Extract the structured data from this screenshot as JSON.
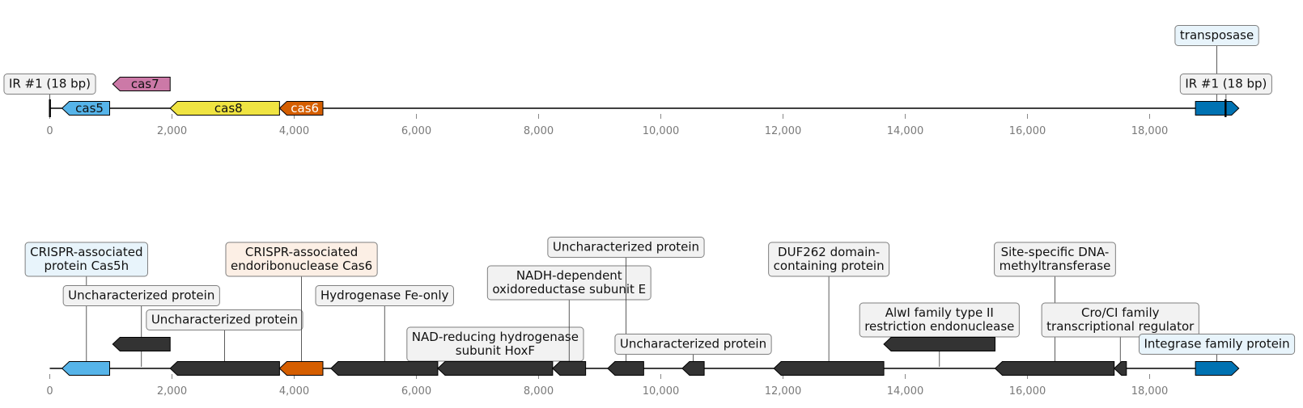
{
  "axis": {
    "ticks": [
      {
        "value": 0,
        "label": "0"
      },
      {
        "value": 2000,
        "label": "2,000"
      },
      {
        "value": 4000,
        "label": "4,000"
      },
      {
        "value": 6000,
        "label": "6,000"
      },
      {
        "value": 8000,
        "label": "8,000"
      },
      {
        "value": 10000,
        "label": "10,000"
      },
      {
        "value": 12000,
        "label": "12,000"
      },
      {
        "value": 14000,
        "label": "14,000"
      },
      {
        "value": 16000,
        "label": "16,000"
      },
      {
        "value": 18000,
        "label": "18,000"
      }
    ]
  },
  "tracks": [
    {
      "id": "top",
      "span": [
        0,
        19350
      ],
      "features": [
        {
          "key": "ir-left",
          "type": "repeat",
          "start": 0,
          "end": 18
        },
        {
          "key": "cas5",
          "type": "gene",
          "start": 200,
          "end": 980,
          "strand": -1,
          "color": "#56b4e9",
          "text_color": "#111111",
          "label": "cas5",
          "lane": 0
        },
        {
          "key": "cas7",
          "type": "gene",
          "start": 1030,
          "end": 1970,
          "strand": -1,
          "color": "#cc79a7",
          "text_color": "#111111",
          "label": "cas7",
          "lane": 1
        },
        {
          "key": "cas8",
          "type": "gene",
          "start": 1970,
          "end": 3760,
          "strand": -1,
          "color": "#f0e442",
          "text_color": "#111111",
          "label": "cas8",
          "lane": 0
        },
        {
          "key": "cas6",
          "type": "gene",
          "start": 3760,
          "end": 4470,
          "strand": -1,
          "color": "#d55e00",
          "text_color": "#ffffff",
          "label": "cas6",
          "lane": 0
        },
        {
          "key": "transposase",
          "type": "gene",
          "start": 18750,
          "end": 19460,
          "strand": 1,
          "color": "#0072b2",
          "lane": 0
        },
        {
          "key": "ir-right",
          "type": "repeat",
          "start": 19240,
          "end": 19258
        }
      ],
      "annotations": [
        {
          "key": "ir-left-label",
          "text": [
            "IR #1 (18 bp)"
          ],
          "pos": 0,
          "level": 1,
          "bg": "#f2f2f2"
        },
        {
          "key": "transposase-label",
          "text": [
            "transposase"
          ],
          "pos": 19100,
          "level": 2,
          "bg": "#e8f4fb"
        },
        {
          "key": "ir-right-label",
          "text": [
            "IR #1 (18 bp)"
          ],
          "pos": 19250,
          "level": 1,
          "bg": "#f2f2f2"
        }
      ]
    },
    {
      "id": "bottom",
      "span": [
        0,
        19350
      ],
      "features": [
        {
          "key": "cas5h",
          "type": "gene",
          "start": 200,
          "end": 980,
          "strand": -1,
          "color": "#56b4e9",
          "lane": 0
        },
        {
          "key": "unchar-1",
          "type": "gene",
          "start": 1030,
          "end": 1970,
          "strand": -1,
          "color": "#333333",
          "lane": 1
        },
        {
          "key": "unchar-2",
          "type": "gene",
          "start": 1970,
          "end": 3760,
          "strand": -1,
          "color": "#333333",
          "lane": 0
        },
        {
          "key": "cas6-endo",
          "type": "gene",
          "start": 3760,
          "end": 4470,
          "strand": -1,
          "color": "#d55e00",
          "lane": 0
        },
        {
          "key": "hydrogenase",
          "type": "gene",
          "start": 4600,
          "end": 6350,
          "strand": -1,
          "color": "#333333",
          "lane": 0
        },
        {
          "key": "hoxf",
          "type": "gene",
          "start": 6350,
          "end": 8230,
          "strand": -1,
          "color": "#333333",
          "lane": 0
        },
        {
          "key": "nadh-e",
          "type": "gene",
          "start": 8230,
          "end": 8770,
          "strand": -1,
          "color": "#333333",
          "lane": 0
        },
        {
          "key": "unchar-3",
          "type": "gene",
          "start": 9130,
          "end": 9720,
          "strand": -1,
          "color": "#333333",
          "lane": 0
        },
        {
          "key": "unchar-4",
          "type": "gene",
          "start": 10350,
          "end": 10710,
          "strand": -1,
          "color": "#333333",
          "lane": 0
        },
        {
          "key": "duf262",
          "type": "gene",
          "start": 11850,
          "end": 13650,
          "strand": -1,
          "color": "#333333",
          "lane": 0
        },
        {
          "key": "alwi",
          "type": "gene",
          "start": 13650,
          "end": 15470,
          "strand": -1,
          "color": "#333333",
          "lane": 1
        },
        {
          "key": "methyltransferase",
          "type": "gene",
          "start": 15470,
          "end": 17420,
          "strand": -1,
          "color": "#333333",
          "lane": 0
        },
        {
          "key": "croci",
          "type": "gene",
          "start": 17420,
          "end": 17620,
          "strand": -1,
          "color": "#333333",
          "lane": 0
        },
        {
          "key": "integrase",
          "type": "gene",
          "start": 18750,
          "end": 19460,
          "strand": 1,
          "color": "#0072b2",
          "lane": 0
        }
      ],
      "annotations": [
        {
          "key": "cas5h-label",
          "text": [
            "CRISPR-associated",
            "protein Cas5h"
          ],
          "pos": 600,
          "level": 5,
          "bg": "#e8f4fb"
        },
        {
          "key": "unchar-1-label",
          "text": [
            "Uncharacterized protein"
          ],
          "pos": 1500,
          "level": 3,
          "bg": "#f2f2f2"
        },
        {
          "key": "unchar-2-label",
          "text": [
            "Uncharacterized protein"
          ],
          "pos": 2860,
          "level": 2,
          "bg": "#f2f2f2"
        },
        {
          "key": "cas6-endo-label",
          "text": [
            "CRISPR-associated",
            "endoribonuclease Cas6"
          ],
          "pos": 4120,
          "level": 5,
          "bg": "#fcefe5"
        },
        {
          "key": "hydrogenase-label",
          "text": [
            "Hydrogenase Fe-only"
          ],
          "pos": 5480,
          "level": 3,
          "bg": "#f2f2f2"
        },
        {
          "key": "hoxf-label",
          "text": [
            "NAD-reducing hydrogenase",
            "subunit HoxF"
          ],
          "pos": 7290,
          "level": 1,
          "bg": "#f2f2f2"
        },
        {
          "key": "nadh-e-label",
          "text": [
            "NADH-dependent",
            "oxidoreductase subunit E"
          ],
          "pos": 8500,
          "level": 4,
          "bg": "#f2f2f2"
        },
        {
          "key": "unchar-3-label",
          "text": [
            "Uncharacterized protein"
          ],
          "pos": 9430,
          "level": 6,
          "bg": "#f2f2f2"
        },
        {
          "key": "unchar-4-label",
          "text": [
            "Uncharacterized protein"
          ],
          "pos": 10530,
          "level": 1,
          "bg": "#f2f2f2"
        },
        {
          "key": "duf262-label",
          "text": [
            "DUF262 domain-",
            "containing protein"
          ],
          "pos": 12750,
          "level": 5,
          "bg": "#f2f2f2"
        },
        {
          "key": "alwi-label",
          "text": [
            "AlwI family type II",
            "restriction endonuclease"
          ],
          "pos": 14560,
          "level": 2,
          "bg": "#f2f2f2"
        },
        {
          "key": "methyltransferase-label",
          "text": [
            "Site-specific DNA-",
            "methyltransferase"
          ],
          "pos": 16450,
          "level": 5,
          "bg": "#f2f2f2"
        },
        {
          "key": "croci-label",
          "text": [
            "Cro/CI family",
            "transcriptional regulator"
          ],
          "pos": 17520,
          "level": 2,
          "bg": "#f2f2f2"
        },
        {
          "key": "integrase-label",
          "text": [
            "Integrase family protein"
          ],
          "pos": 19100,
          "level": 1,
          "bg": "#e8f4fb"
        }
      ]
    }
  ]
}
